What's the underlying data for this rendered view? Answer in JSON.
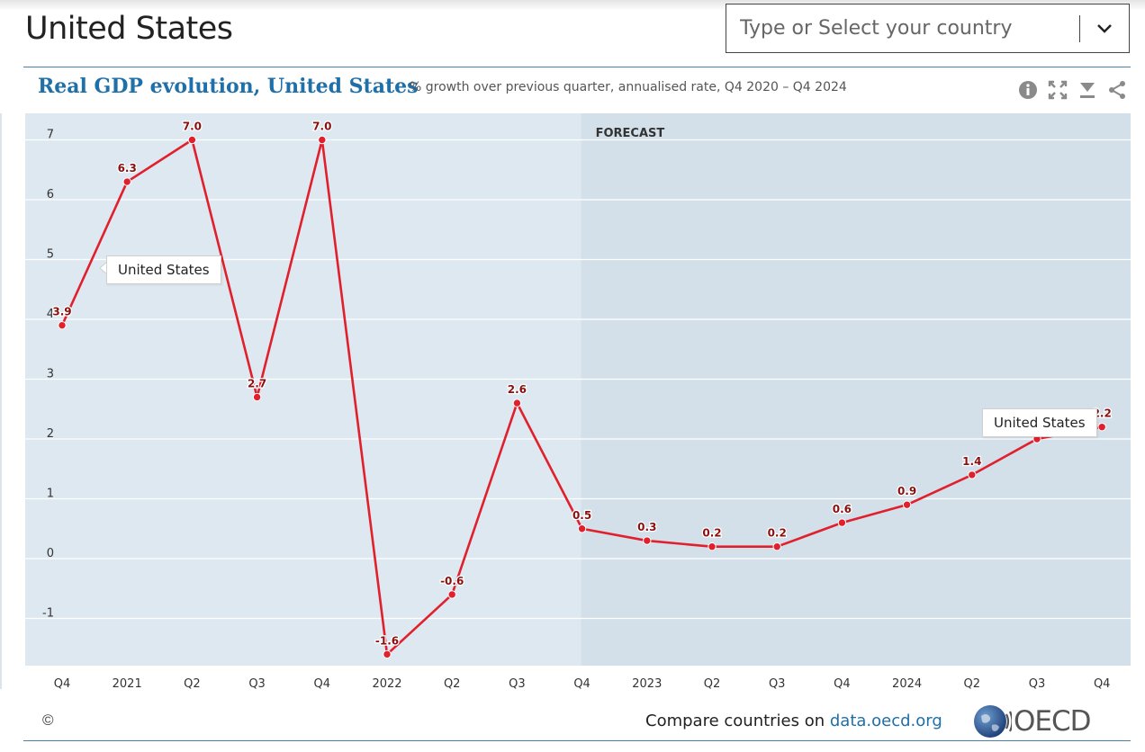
{
  "page": {
    "title": "United States",
    "country_select_placeholder": "Type or Select your country"
  },
  "chart_header": {
    "title": "Real GDP evolution, United States",
    "subtitle": "% growth over previous quarter, annualised rate, Q4 2020 – Q4 2024",
    "tools": [
      "info-icon",
      "fullscreen-icon",
      "download-icon",
      "share-icon"
    ]
  },
  "footer": {
    "copyright": "©",
    "compare_text": "Compare countries on ",
    "link_text": "data.oecd.org",
    "logo_text": "OECD"
  },
  "tooltips": {
    "left": "United States",
    "right": "United States"
  },
  "chart_data": {
    "type": "line",
    "categories": [
      "Q4",
      "2021",
      "Q2",
      "Q3",
      "Q4",
      "2022",
      "Q2",
      "Q3",
      "Q4",
      "2023",
      "Q2",
      "Q3",
      "Q4",
      "2024",
      "Q2",
      "Q3",
      "Q4"
    ],
    "series": [
      {
        "name": "United States",
        "color": "#e0202c",
        "values": [
          3.9,
          6.3,
          7.0,
          2.7,
          7.0,
          -1.6,
          -0.6,
          2.6,
          0.5,
          0.3,
          0.2,
          0.2,
          0.6,
          0.9,
          1.4,
          2.0,
          2.2
        ],
        "labels": [
          "3.9",
          "6.3",
          "7.0",
          "2.7",
          "7.0",
          "-1.6",
          "-0.6",
          "2.6",
          "0.5",
          "0.3",
          "0.2",
          "0.2",
          "0.6",
          "0.9",
          "1.4",
          "",
          "2.2"
        ]
      }
    ],
    "forecast_start_index": 8,
    "forecast_label": "FORECAST",
    "yticks": [
      -1,
      0,
      1,
      2,
      3,
      4,
      5,
      6,
      7
    ],
    "ylim": [
      -1.7,
      7.2
    ],
    "grid": true,
    "colors": {
      "plot_background": "#dde8f0",
      "forecast_background": "#d3e0ea",
      "gridline": "#ffffff",
      "line": "#e0202c",
      "label": "#8b0f0f",
      "title": "#1f6fa8"
    }
  }
}
